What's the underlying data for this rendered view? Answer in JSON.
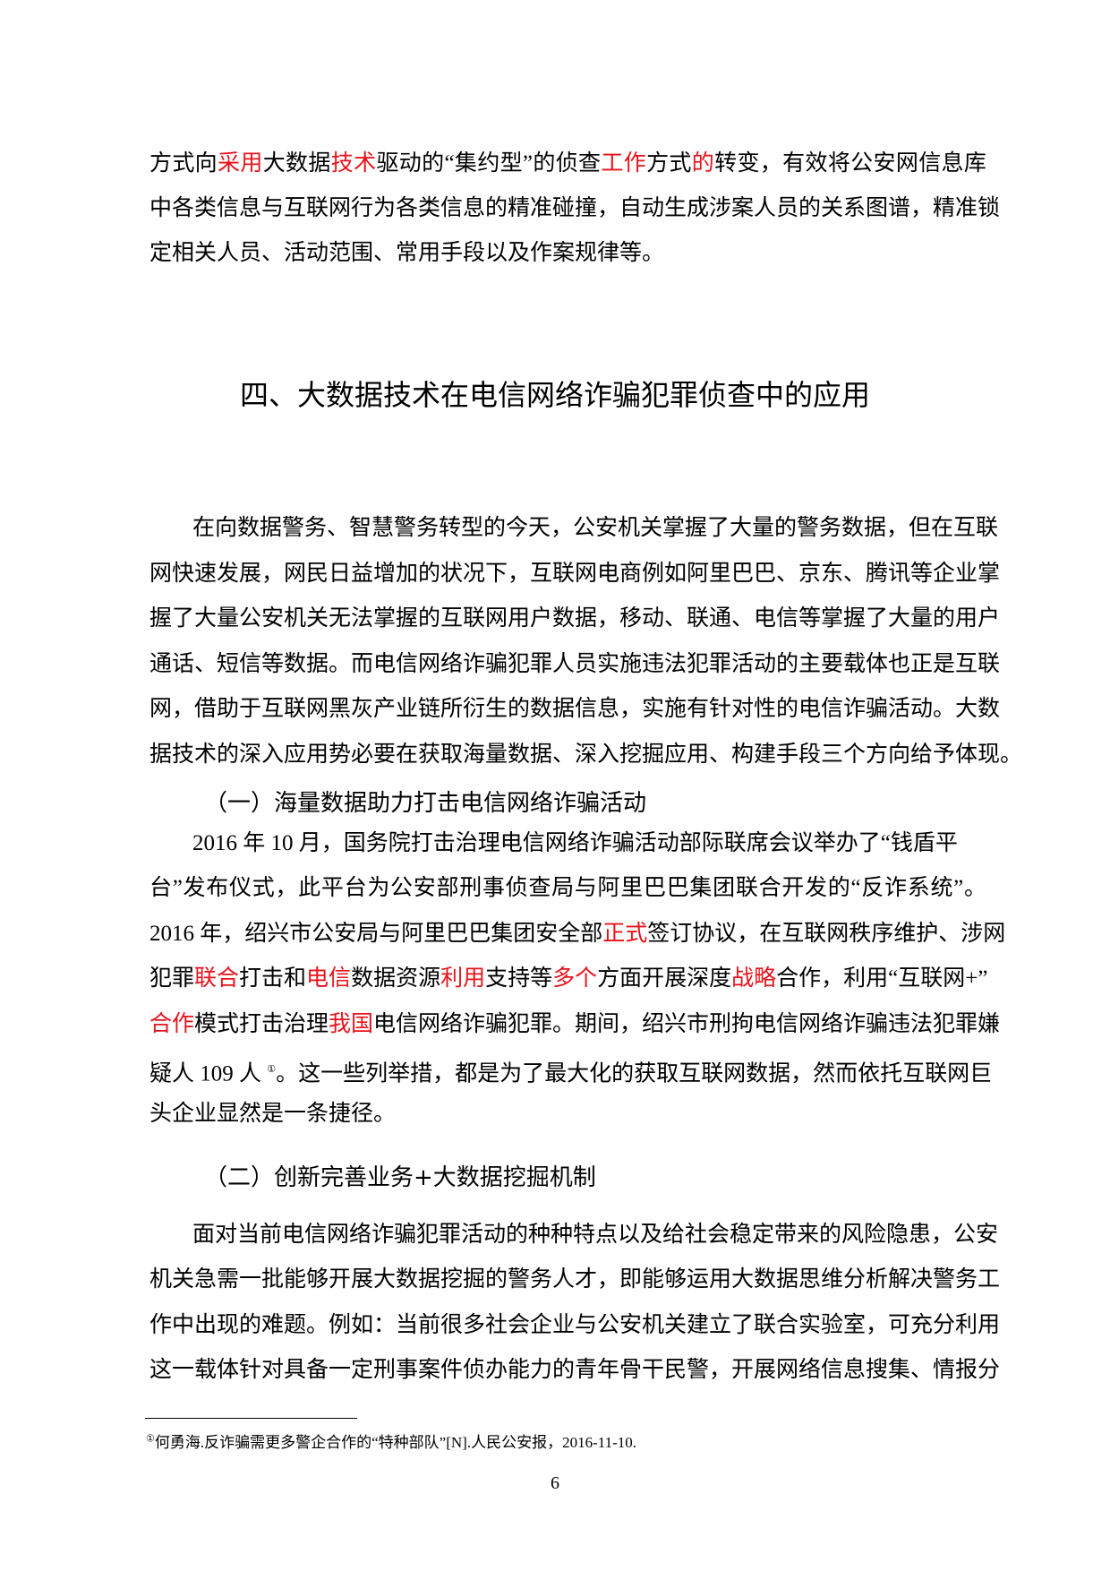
{
  "highlight_color": "#e8121b",
  "paragraph_1": [
    [
      {
        "t": "方式向"
      },
      {
        "t": "采用",
        "red": true
      },
      {
        "t": "大数据"
      },
      {
        "t": "技术",
        "red": true
      },
      {
        "t": "驱动的“集约型”的侦查"
      },
      {
        "t": "工作",
        "red": true
      },
      {
        "t": "方式"
      },
      {
        "t": "的",
        "red": true
      },
      {
        "t": "转变，有效将公安网信息库"
      }
    ],
    [
      {
        "t": "中各类信息与互联网行为各类信息的精准碰撞，自动生成涉案人员的关系图谱，精准锁"
      }
    ],
    [
      {
        "t": "定相关人员、活动范围、常用手段以及作案规律等。"
      }
    ]
  ],
  "section_heading": "四、大数据技术在电信网络诈骗犯罪侦查中的应用",
  "paragraph_2": [
    [
      {
        "t": "在向数据警务、智慧警务转型的今天，公安机关掌握了大量的警务数据，但在互联"
      }
    ],
    [
      {
        "t": "网快速发展，网民日益增加的状况下，互联网电商例如阿里巴巴、京东、腾讯等企业掌"
      }
    ],
    [
      {
        "t": "握了大量公安机关无法掌握的互联网用户数据，移动、联通、电信等掌握了大量的用户"
      }
    ],
    [
      {
        "t": "通话、短信等数据。而电信网络诈骗犯罪人员实施违法犯罪活动的主要载体也正是互联"
      }
    ],
    [
      {
        "t": "网，借助于互联网黑灰产业链所衍生的数据信息，实施有针对性的电信诈骗活动。大数"
      }
    ],
    [
      {
        "t": "据技术的深入应用势必要在获取海量数据、深入挖掘应用、构建手段三个方向给予体现。"
      }
    ]
  ],
  "subheading_1": "（一）海量数据助力打击电信网络诈骗活动",
  "paragraph_3": [
    [
      {
        "t": "2016 年 10 月，国务院打击治理电信网络诈骗活动部际联席会议举办了“钱盾平"
      }
    ],
    [
      {
        "t": "台”发布仪式，此平台为公安部刑事侦查局与阿里巴巴集团联合开发的“反诈系统”。"
      }
    ],
    [
      {
        "t": "2016 年，绍兴市公安局与阿里巴巴集团安全部"
      },
      {
        "t": "正式",
        "red": true
      },
      {
        "t": "签订协议，在互联网秩序维护、涉网"
      }
    ],
    [
      {
        "t": "犯罪"
      },
      {
        "t": "联合",
        "red": true
      },
      {
        "t": "打击和"
      },
      {
        "t": "电信",
        "red": true
      },
      {
        "t": "数据资源"
      },
      {
        "t": "利用",
        "red": true
      },
      {
        "t": "支持等"
      },
      {
        "t": "多个",
        "red": true
      },
      {
        "t": "方面开展深度"
      },
      {
        "t": "战略",
        "red": true
      },
      {
        "t": "合作，利用“互联网+”"
      }
    ],
    [
      {
        "t": "合作",
        "red": true
      },
      {
        "t": "模式打击治理"
      },
      {
        "t": "我国",
        "red": true
      },
      {
        "t": "电信网络诈骗犯罪。期间，绍兴市刑拘电信网络诈骗违法犯罪嫌"
      }
    ],
    [
      {
        "t": "疑人  109 人  "
      },
      {
        "t": "①",
        "sup": true
      },
      {
        "t": "。这一些列举措，都是为了最大化的获取互联网数据，然而依托互联网巨"
      }
    ],
    [
      {
        "t": "头企业显然是一条捷径。"
      }
    ]
  ],
  "subheading_2": "（二）创新完善业务+大数据挖掘机制",
  "paragraph_4": [
    [
      {
        "t": "面对当前电信网络诈骗犯罪活动的种种特点以及给社会稳定带来的风险隐患，公安"
      }
    ],
    [
      {
        "t": "机关急需一批能够开展大数据挖掘的警务人才，即能够运用大数据思维分析解决警务工"
      }
    ],
    [
      {
        "t": "作中出现的难题。例如：当前很多社会企业与公安机关建立了联合实验室，可充分利用"
      }
    ],
    [
      {
        "t": "这一载体针对具备一定刑事案件侦办能力的青年骨干民警，开展网络信息搜集、情报分"
      }
    ]
  ],
  "footnote": {
    "mark": "①",
    "text": "何勇海.反诈骗需更多警企合作的“特种部队”[N].人民公安报，2016-11-10."
  },
  "page_number": "6"
}
